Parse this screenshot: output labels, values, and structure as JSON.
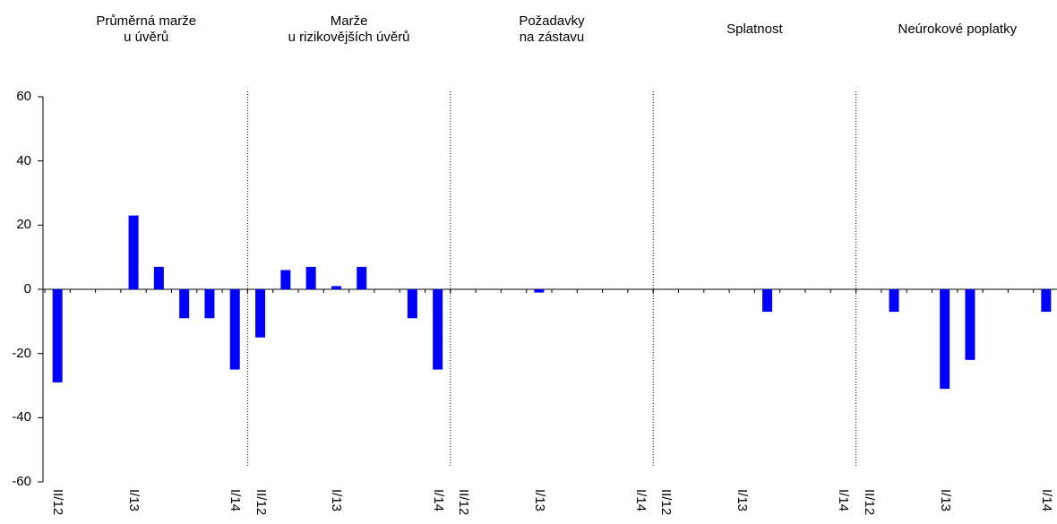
{
  "chart_data": {
    "type": "bar",
    "panels": [
      {
        "title": "Průměrná marže\nu úvěrů",
        "values": [
          -29,
          0,
          0,
          23,
          7,
          -9,
          -9,
          -25
        ]
      },
      {
        "title": "Marže\nu rizikovějších úvěrů",
        "values": [
          -15,
          6,
          7,
          1,
          7,
          0,
          -9,
          -25
        ]
      },
      {
        "title": "Požadavky\nna zástavu",
        "values": [
          0,
          0,
          0,
          -1,
          0,
          0,
          0,
          0
        ]
      },
      {
        "title": "Splatnost",
        "values": [
          0,
          0,
          0,
          0,
          -7,
          0,
          0,
          0
        ]
      },
      {
        "title": "Neúrokové poplatky",
        "values": [
          0,
          -7,
          0,
          -31,
          -22,
          0,
          0,
          -7
        ]
      }
    ],
    "period_labels": [
      "II/12",
      "",
      "",
      "I/13",
      "",
      "",
      "",
      "I/14"
    ],
    "yticks": [
      60,
      40,
      20,
      0,
      -20,
      -40,
      -60
    ],
    "ylim": [
      -60,
      60
    ],
    "bar_color": "#0000ff",
    "grid": false,
    "legend": "none"
  }
}
